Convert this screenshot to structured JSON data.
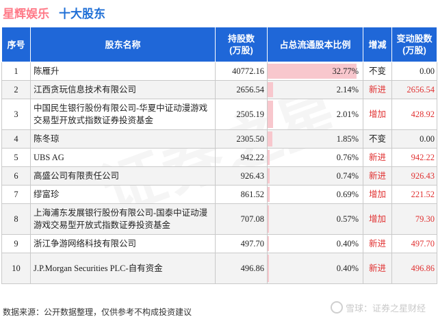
{
  "header": {
    "company": "星辉娱乐",
    "subtitle": "十大股东"
  },
  "columns": {
    "idx": "序号",
    "name": "股东名称",
    "shares_l1": "持股数",
    "shares_l2": "(万股)",
    "ratio": "占总流通股本比例",
    "change": "增减",
    "amount_l1": "变动股数",
    "amount_l2": "(万股)"
  },
  "rows": [
    {
      "idx": "1",
      "name": "陈雁升",
      "shares": "40772.16",
      "ratio": "32.77%",
      "ratio_value": 32.77,
      "change": "不变",
      "amount": "0.00",
      "changed": false
    },
    {
      "idx": "2",
      "name": "江西贪玩信息技术有限公司",
      "shares": "2656.54",
      "ratio": "2.14%",
      "ratio_value": 2.14,
      "change": "新进",
      "amount": "2656.54",
      "changed": true
    },
    {
      "idx": "3",
      "name": "中国民生银行股份有限公司-华夏中证动漫游戏交易型开放式指数证券投资基金",
      "shares": "2505.19",
      "ratio": "2.01%",
      "ratio_value": 2.01,
      "change": "增加",
      "amount": "428.92",
      "changed": true
    },
    {
      "idx": "4",
      "name": "陈冬琼",
      "shares": "2305.50",
      "ratio": "1.85%",
      "ratio_value": 1.85,
      "change": "不变",
      "amount": "0.00",
      "changed": false
    },
    {
      "idx": "5",
      "name": "UBS AG",
      "shares": "942.22",
      "ratio": "0.76%",
      "ratio_value": 0.76,
      "change": "新进",
      "amount": "942.22",
      "changed": true
    },
    {
      "idx": "6",
      "name": "高盛公司有限责任公司",
      "shares": "926.43",
      "ratio": "0.74%",
      "ratio_value": 0.74,
      "change": "新进",
      "amount": "926.43",
      "changed": true
    },
    {
      "idx": "7",
      "name": "缪富珍",
      "shares": "861.52",
      "ratio": "0.69%",
      "ratio_value": 0.69,
      "change": "增加",
      "amount": "221.52",
      "changed": true
    },
    {
      "idx": "8",
      "name": "上海浦东发展银行股份有限公司-国泰中证动漫游戏交易型开放式指数证券投资基金",
      "shares": "707.08",
      "ratio": "0.57%",
      "ratio_value": 0.57,
      "change": "增加",
      "amount": "79.30",
      "changed": true
    },
    {
      "idx": "9",
      "name": "浙江争游网络科技有限公司",
      "shares": "497.70",
      "ratio": "0.40%",
      "ratio_value": 0.4,
      "change": "新进",
      "amount": "497.70",
      "changed": true
    },
    {
      "idx": "10",
      "name": "J.P.Morgan Securities PLC-自有资金",
      "shares": "496.86",
      "ratio": "0.40%",
      "ratio_value": 0.4,
      "change": "新进",
      "amount": "496.86",
      "changed": true
    }
  ],
  "footer": "数据来源：公开数据整理，仅供参考不构成投资建议",
  "watermark": "雪球：证券之星财经",
  "background_watermark": "证券之星",
  "colors": {
    "header_bg": "#1f67d8",
    "title": "#ff7a88",
    "subtitle": "#1f6fd6",
    "increase": "#e03030",
    "bar": "#f8c7cd"
  }
}
